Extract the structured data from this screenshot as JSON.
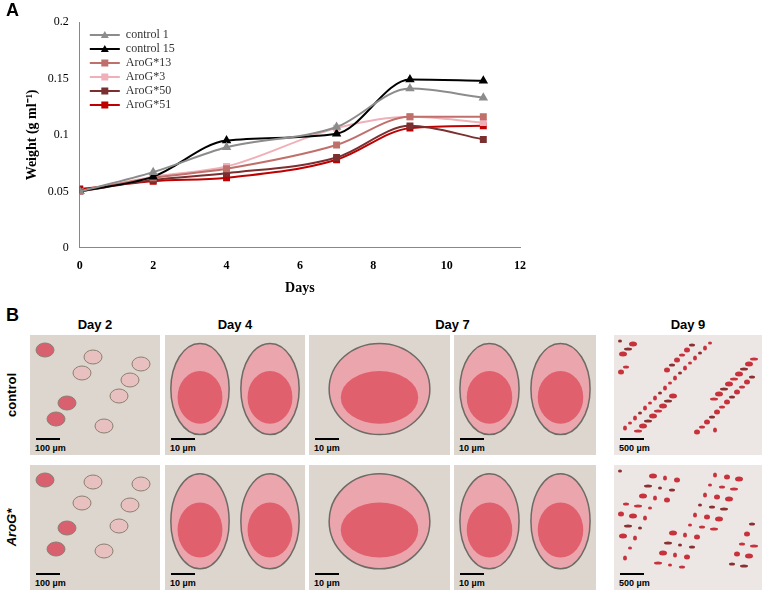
{
  "chart_data": {
    "type": "line",
    "title": "A",
    "x_label": "Days",
    "y_label": "Weight (g ml⁻¹)",
    "x": [
      0,
      2,
      4,
      7,
      9,
      11
    ],
    "series": [
      {
        "name": "control 1",
        "color": "#8c8c8c",
        "marker": "triangle",
        "values": [
          0.05,
          0.067,
          0.089,
          0.107,
          0.141,
          0.133
        ]
      },
      {
        "name": "control 15",
        "color": "#000000",
        "marker": "triangle",
        "values": [
          0.05,
          0.063,
          0.095,
          0.101,
          0.149,
          0.148
        ]
      },
      {
        "name": "AroG*13",
        "color": "#c0706a",
        "marker": "square",
        "values": [
          0.05,
          0.062,
          0.07,
          0.091,
          0.116,
          0.116
        ]
      },
      {
        "name": "AroG*3",
        "color": "#f0b0b8",
        "marker": "square",
        "values": [
          0.05,
          0.063,
          0.072,
          0.106,
          0.116,
          0.111
        ]
      },
      {
        "name": "AroG*50",
        "color": "#7a3030",
        "marker": "square",
        "values": [
          0.05,
          0.06,
          0.066,
          0.08,
          0.108,
          0.096
        ]
      },
      {
        "name": "AroG*51",
        "color": "#c00000",
        "marker": "square",
        "values": [
          0.052,
          0.059,
          0.062,
          0.078,
          0.106,
          0.108
        ]
      }
    ],
    "xlim": [
      0,
      12
    ],
    "xticks": [
      0,
      2,
      4,
      6,
      8,
      10,
      12
    ],
    "ylim": [
      0,
      0.2
    ],
    "yticks": [
      0,
      0.05,
      0.1,
      0.15,
      0.2
    ],
    "grid": false,
    "legend": "upper left"
  },
  "panel_b": {
    "label": "B",
    "headers": [
      "Day 2",
      "Day 4",
      "Day 7",
      null,
      "Day 9"
    ],
    "rows": [
      {
        "label": "control",
        "scale_bars": [
          "100 µm",
          "10 µm",
          "10 µm",
          "10 µm",
          "500 µm"
        ]
      },
      {
        "label": "AroG*",
        "scale_bars": [
          "100 µm",
          "10 µm",
          "10 µm",
          "10 µm",
          "500 µm"
        ]
      }
    ]
  }
}
